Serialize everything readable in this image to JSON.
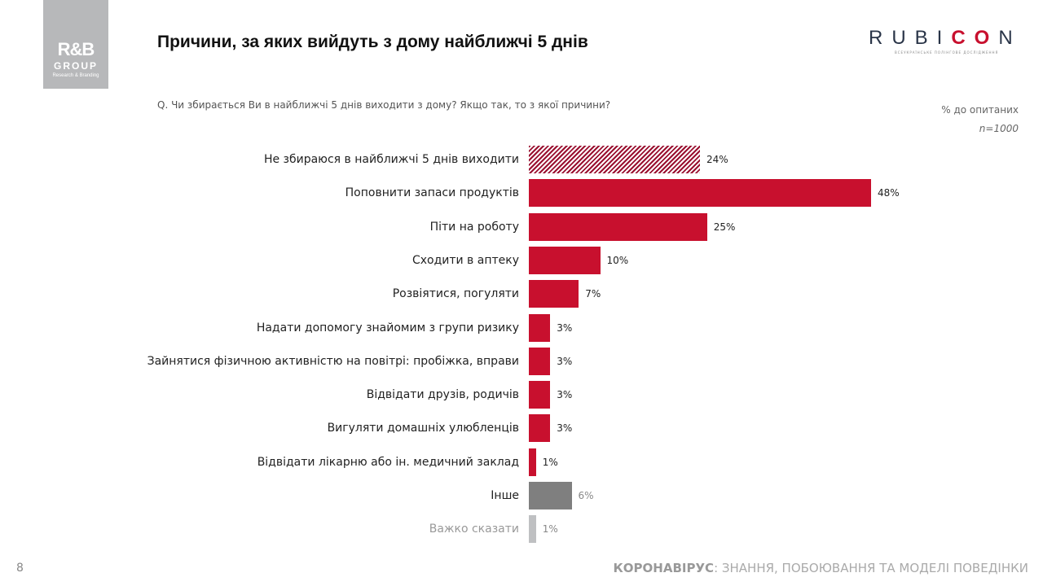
{
  "header": {
    "title": "Причини, за яких вийдуть з дому найближчі 5 днів",
    "question": "Q. Чи збирається Ви в найближчі 5 днів виходити з дому? Якщо так, то з якої причини?",
    "base_label": "% до опитаних",
    "base_n": "n=1000"
  },
  "logos": {
    "rb_main": "R&B",
    "rb_group": "GROUP",
    "rb_sub": "Research & Branding",
    "rubicon_a": "RUBI",
    "rubicon_b": "CO",
    "rubicon_c": "N",
    "rubicon_sub": "ВСЕУКРАЇНСЬКЕ ПОЛІНГОВЕ ДОСЛІДЖЕННЯ"
  },
  "footer": {
    "page": "8",
    "bold": "КОРОНАВІРУС",
    "rest": ": ЗНАННЯ, ПОБОЮВАННЯ ТА МОДЕЛІ ПОВЕДІНКИ"
  },
  "chart_data": {
    "type": "bar",
    "orientation": "horizontal",
    "xlim": [
      0,
      48
    ],
    "grid": false,
    "categories": [
      "Не збираюся в найближчі 5 днів виходити",
      "Поповнити запаси продуктів",
      "Піти на роботу",
      "Сходити в аптеку",
      "Розвіятися, погуляти",
      "Надати допомогу знайомим з групи ризику",
      "Зайнятися фізичною активністю на повітрі: пробіжка, вправи",
      "Відвідати друзів, родичів",
      "Вигуляти домашніх улюбленців",
      "Відвідати лікарню або ін. медичний заклад",
      "Інше",
      "Важко сказати"
    ],
    "values": [
      24,
      48,
      25,
      10,
      7,
      3,
      3,
      3,
      3,
      1,
      6,
      1
    ],
    "labels": [
      "24%",
      "48%",
      "25%",
      "10%",
      "7%",
      "3%",
      "3%",
      "3%",
      "3%",
      "1%",
      "6%",
      "1%"
    ],
    "styles": [
      "hatched",
      "solid",
      "solid",
      "solid",
      "solid",
      "solid",
      "solid",
      "solid",
      "solid",
      "solid",
      "gray",
      "lightgray"
    ],
    "colors": {
      "solid": "#c8102e",
      "hatched": "#9a1030",
      "gray": "#7f7f7f",
      "lightgray": "#bfc0c2"
    }
  }
}
